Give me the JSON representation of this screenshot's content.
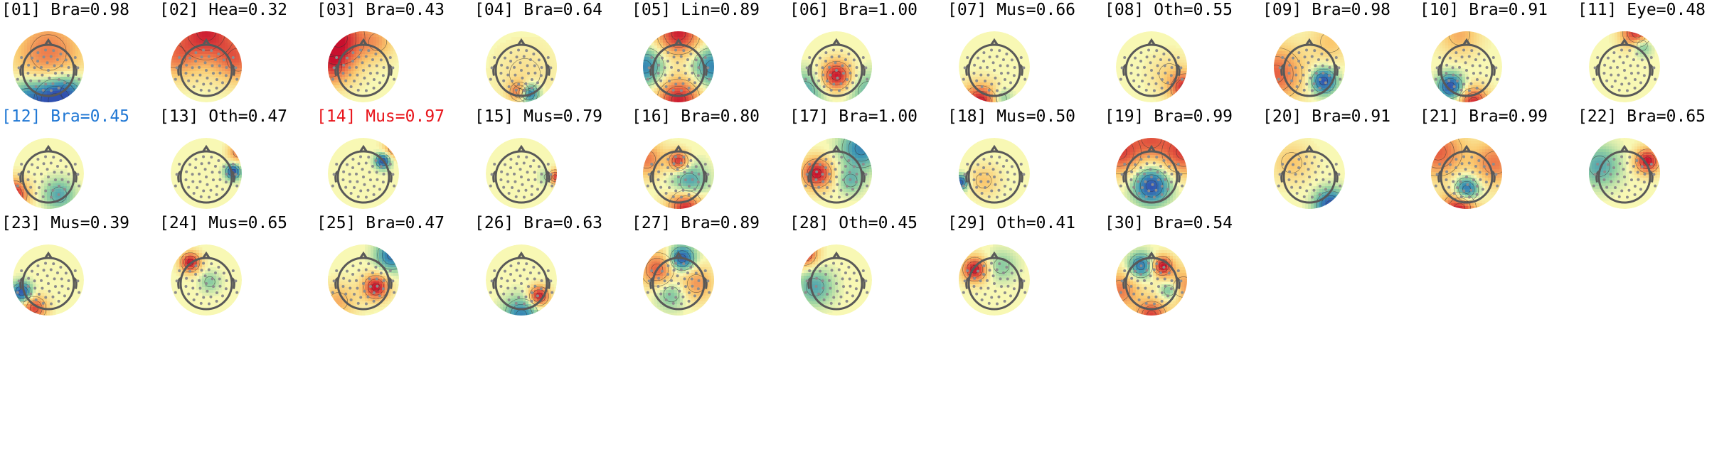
{
  "colors": {
    "default_label": "#000000",
    "selected_label": "#1f77d4",
    "rejected_label": "#e8141a",
    "head_outline": "#595959",
    "sensor": "#8c8c8c",
    "cmap_neutral": "#f8f8b4",
    "cmap_pos": "#c8102e",
    "cmap_neg": "#3050b0"
  },
  "components": [
    {
      "label": "[01] Bra=0.98",
      "state": "normal",
      "blobs": [
        [
          0.0,
          -0.4,
          0.6,
          0.7
        ],
        [
          0.2,
          0.95,
          -1.0,
          0.45
        ],
        [
          -0.6,
          0.9,
          -0.6,
          0.4
        ],
        [
          0.6,
          0.7,
          -0.4,
          0.35
        ]
      ]
    },
    {
      "label": "[02] Hea=0.32",
      "state": "normal",
      "blobs": [
        [
          0.0,
          -1.0,
          0.9,
          0.6
        ],
        [
          0.9,
          -0.2,
          0.6,
          0.45
        ],
        [
          -0.9,
          -0.3,
          0.5,
          0.45
        ]
      ]
    },
    {
      "label": "[03] Bra=0.43",
      "state": "normal",
      "blobs": [
        [
          -0.7,
          -0.8,
          0.95,
          0.55
        ],
        [
          -0.9,
          0.0,
          0.6,
          0.4
        ],
        [
          0.4,
          -0.7,
          0.35,
          0.35
        ]
      ]
    },
    {
      "label": "[04] Bra=0.64",
      "state": "normal",
      "blobs": [
        [
          0.2,
          0.75,
          -1.0,
          0.2
        ],
        [
          -0.05,
          0.7,
          0.75,
          0.2
        ],
        [
          0.1,
          0.2,
          0.15,
          0.6
        ]
      ]
    },
    {
      "label": "[05] Lin=0.89",
      "state": "normal",
      "blobs": [
        [
          0.0,
          -0.95,
          0.95,
          0.45
        ],
        [
          0.0,
          0.95,
          0.95,
          0.45
        ],
        [
          -0.95,
          0.0,
          -0.7,
          0.4
        ],
        [
          0.95,
          0.0,
          -0.7,
          0.4
        ]
      ]
    },
    {
      "label": "[06] Bra=1.00",
      "state": "normal",
      "blobs": [
        [
          0.0,
          0.25,
          1.0,
          0.3
        ],
        [
          -0.9,
          0.7,
          -0.5,
          0.4
        ],
        [
          0.9,
          0.7,
          -0.4,
          0.4
        ]
      ]
    },
    {
      "label": "[07] Mus=0.66",
      "state": "normal",
      "blobs": [
        [
          -0.4,
          1.0,
          1.0,
          0.35
        ],
        [
          0.2,
          0.9,
          -0.4,
          0.2
        ]
      ]
    },
    {
      "label": "[08] Oth=0.55",
      "state": "normal",
      "blobs": [
        [
          0.95,
          0.6,
          0.85,
          0.3
        ],
        [
          0.5,
          0.2,
          0.2,
          0.4
        ]
      ]
    },
    {
      "label": "[09] Bra=0.98",
      "state": "normal",
      "blobs": [
        [
          0.4,
          0.4,
          -1.0,
          0.25
        ],
        [
          -0.95,
          0.2,
          0.7,
          0.55
        ],
        [
          0.6,
          -0.7,
          0.3,
          0.4
        ]
      ]
    },
    {
      "label": "[10] Bra=0.91",
      "state": "normal",
      "blobs": [
        [
          -0.45,
          0.55,
          -1.0,
          0.25
        ],
        [
          0.2,
          1.0,
          0.9,
          0.3
        ],
        [
          -0.2,
          -0.9,
          0.4,
          0.4
        ]
      ]
    },
    {
      "label": "[11] Eye=0.48",
      "state": "normal",
      "blobs": [
        [
          0.35,
          -0.95,
          0.95,
          0.3
        ],
        [
          0.5,
          -0.6,
          -0.6,
          0.2
        ]
      ]
    },
    {
      "label": "[12] Bra=0.45",
      "state": "selected",
      "blobs": [
        [
          -1.0,
          0.6,
          1.0,
          0.3
        ],
        [
          0.3,
          0.6,
          -0.5,
          0.3
        ]
      ]
    },
    {
      "label": "[13] Oth=0.47",
      "state": "normal",
      "blobs": [
        [
          0.75,
          -0.05,
          -1.0,
          0.15
        ],
        [
          0.9,
          -0.6,
          0.6,
          0.2
        ]
      ]
    },
    {
      "label": "[14] Mus=0.97",
      "state": "rejected",
      "blobs": [
        [
          0.55,
          -0.35,
          -1.0,
          0.15
        ],
        [
          0.85,
          -0.7,
          0.6,
          0.2
        ]
      ]
    },
    {
      "label": "[15] Mus=0.79",
      "state": "normal",
      "blobs": [
        [
          0.95,
          0.1,
          0.95,
          0.15
        ],
        [
          0.75,
          0.1,
          -0.4,
          0.15
        ]
      ]
    },
    {
      "label": "[16] Bra=0.80",
      "state": "normal",
      "blobs": [
        [
          0.0,
          -0.35,
          0.9,
          0.2
        ],
        [
          0.2,
          0.95,
          0.95,
          0.35
        ],
        [
          0.3,
          0.25,
          -0.6,
          0.35
        ],
        [
          -0.9,
          -0.4,
          0.6,
          0.35
        ]
      ]
    },
    {
      "label": "[17] Bra=1.00",
      "state": "normal",
      "blobs": [
        [
          -0.55,
          0.0,
          1.0,
          0.3
        ],
        [
          0.7,
          -0.7,
          -0.7,
          0.4
        ],
        [
          0.4,
          0.2,
          -0.4,
          0.25
        ]
      ]
    },
    {
      "label": "[18] Mus=0.50",
      "state": "normal",
      "blobs": [
        [
          -0.95,
          0.25,
          -0.95,
          0.15
        ],
        [
          -0.3,
          0.2,
          0.3,
          0.3
        ]
      ]
    },
    {
      "label": "[19] Bra=0.99",
      "state": "normal",
      "blobs": [
        [
          0.0,
          0.35,
          -1.0,
          0.35
        ],
        [
          -0.9,
          -0.6,
          0.8,
          0.45
        ],
        [
          0.9,
          -0.6,
          0.8,
          0.45
        ],
        [
          0.0,
          -1.0,
          0.6,
          0.4
        ]
      ]
    },
    {
      "label": "[20] Bra=0.91",
      "state": "normal",
      "blobs": [
        [
          0.6,
          0.9,
          -1.0,
          0.3
        ],
        [
          -0.5,
          -0.3,
          0.3,
          0.4
        ]
      ]
    },
    {
      "label": "[21] Bra=0.99",
      "state": "normal",
      "blobs": [
        [
          0.0,
          0.45,
          -1.0,
          0.25
        ],
        [
          -0.2,
          1.0,
          1.0,
          0.35
        ],
        [
          -0.8,
          -0.6,
          0.7,
          0.5
        ],
        [
          0.8,
          -0.3,
          0.6,
          0.45
        ]
      ]
    },
    {
      "label": "[22] Bra=0.65",
      "state": "normal",
      "blobs": [
        [
          0.65,
          -0.35,
          1.0,
          0.25
        ],
        [
          -0.7,
          -0.2,
          -0.5,
          0.4
        ]
      ]
    },
    {
      "label": "[23] Mus=0.39",
      "state": "normal",
      "blobs": [
        [
          -0.75,
          0.35,
          -1.0,
          0.2
        ],
        [
          -0.4,
          0.8,
          0.8,
          0.25
        ]
      ]
    },
    {
      "label": "[24] Mus=0.65",
      "state": "normal",
      "blobs": [
        [
          -0.45,
          -0.5,
          1.0,
          0.2
        ],
        [
          0.1,
          0.05,
          -0.3,
          0.2
        ]
      ]
    },
    {
      "label": "[25] Bra=0.47",
      "state": "normal",
      "blobs": [
        [
          0.35,
          0.2,
          1.0,
          0.25
        ],
        [
          0.8,
          -0.7,
          -0.8,
          0.3
        ],
        [
          -0.7,
          0.6,
          0.4,
          0.35
        ]
      ]
    },
    {
      "label": "[26] Bra=0.63",
      "state": "normal",
      "blobs": [
        [
          0.5,
          0.45,
          1.0,
          0.2
        ],
        [
          0.0,
          1.0,
          -0.7,
          0.35
        ]
      ]
    },
    {
      "label": "[27] Bra=0.89",
      "state": "normal",
      "blobs": [
        [
          0.1,
          -0.6,
          -1.0,
          0.25
        ],
        [
          -0.6,
          -0.3,
          0.7,
          0.35
        ],
        [
          0.5,
          0.1,
          0.5,
          0.35
        ],
        [
          -0.2,
          0.4,
          -0.4,
          0.3
        ]
      ]
    },
    {
      "label": "[28] Oth=0.45",
      "state": "normal",
      "blobs": [
        [
          -0.9,
          -0.75,
          0.95,
          0.25
        ],
        [
          -0.6,
          0.2,
          -0.5,
          0.35
        ]
      ]
    },
    {
      "label": "[29] Oth=0.41",
      "state": "normal",
      "blobs": [
        [
          -0.55,
          -0.3,
          1.0,
          0.25
        ],
        [
          0.2,
          -0.4,
          -0.3,
          0.3
        ]
      ]
    },
    {
      "label": "[30] Bra=0.54",
      "state": "normal",
      "blobs": [
        [
          0.3,
          -0.4,
          1.0,
          0.2
        ],
        [
          -0.3,
          -0.4,
          -0.8,
          0.25
        ],
        [
          0.5,
          0.3,
          -0.6,
          0.2
        ],
        [
          0.0,
          1.0,
          0.8,
          0.3
        ],
        [
          -0.9,
          0.3,
          0.6,
          0.4
        ],
        [
          0.9,
          0.2,
          0.5,
          0.4
        ]
      ]
    }
  ]
}
